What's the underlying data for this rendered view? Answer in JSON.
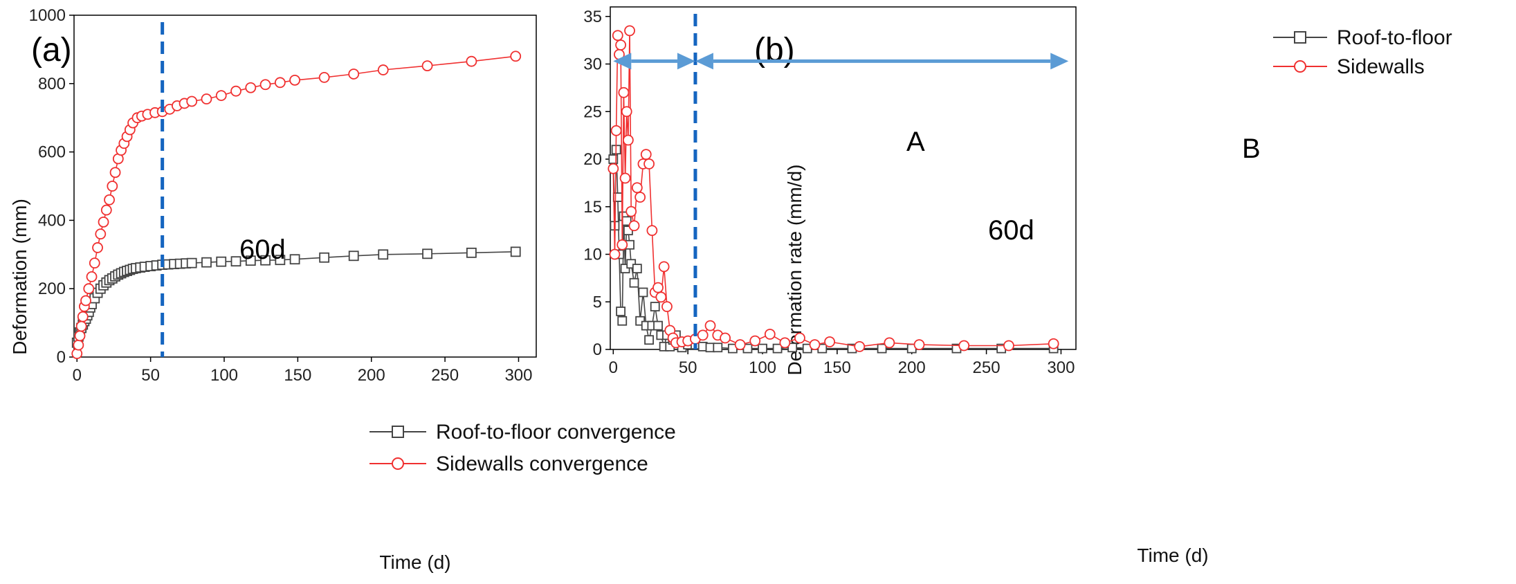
{
  "colors": {
    "roof": "#444444",
    "sidewall": "#f03030",
    "dashed": "#1565c0",
    "arrow": "#5b9bd5",
    "axis": "#000000"
  },
  "chart_data": [
    {
      "type": "line",
      "panel_label": "(a)",
      "xlabel": "Time (d)",
      "ylabel": "Deformation (mm)",
      "xlim": [
        -2,
        312
      ],
      "ylim": [
        0,
        1000
      ],
      "xticks": [
        0,
        50,
        100,
        150,
        200,
        250,
        300
      ],
      "yticks": [
        0,
        200,
        400,
        600,
        800,
        1000
      ],
      "grid": false,
      "legend_position": "bottom-right",
      "vline": {
        "x": 58,
        "label": "60d"
      },
      "series": [
        {
          "name": "Roof-to-floor convergence",
          "marker": "square",
          "x": [
            0,
            1,
            2,
            3,
            4,
            5,
            6,
            7,
            8,
            9,
            10,
            12,
            14,
            16,
            18,
            20,
            22,
            24,
            26,
            28,
            30,
            32,
            34,
            36,
            38,
            40,
            43,
            46,
            50,
            54,
            58,
            62,
            66,
            70,
            74,
            78,
            88,
            98,
            108,
            118,
            128,
            138,
            148,
            168,
            188,
            208,
            238,
            268,
            298
          ],
          "y": [
            42,
            60,
            72,
            85,
            95,
            105,
            112,
            122,
            132,
            145,
            155,
            172,
            188,
            200,
            210,
            218,
            225,
            230,
            236,
            241,
            245,
            249,
            252,
            255,
            258,
            260,
            262,
            264,
            266,
            268,
            270,
            271,
            272,
            273,
            274,
            275,
            277,
            279,
            280,
            282,
            283,
            284,
            286,
            291,
            296,
            300,
            302,
            305,
            308
          ]
        },
        {
          "name": "Sidewalls convergence",
          "marker": "circle",
          "x": [
            0,
            1,
            2,
            3,
            4,
            5,
            6,
            8,
            10,
            12,
            14,
            16,
            18,
            20,
            22,
            24,
            26,
            28,
            30,
            32,
            34,
            36,
            38,
            41,
            44,
            48,
            53,
            58,
            63,
            68,
            73,
            78,
            88,
            98,
            108,
            118,
            128,
            138,
            148,
            168,
            188,
            208,
            238,
            268,
            298
          ],
          "y": [
            10,
            35,
            62,
            90,
            118,
            148,
            165,
            200,
            235,
            275,
            320,
            360,
            395,
            430,
            460,
            500,
            540,
            580,
            605,
            625,
            645,
            665,
            685,
            700,
            705,
            710,
            715,
            718,
            725,
            735,
            742,
            748,
            755,
            765,
            778,
            788,
            797,
            803,
            810,
            818,
            828,
            840,
            852,
            865,
            880
          ]
        }
      ]
    },
    {
      "type": "line",
      "panel_label": "(b)",
      "xlabel": "Time (d)",
      "ylabel": "Deformation rate (mm/d)",
      "xlim": [
        -2,
        310
      ],
      "ylim": [
        0,
        36
      ],
      "xticks": [
        0,
        50,
        100,
        150,
        200,
        250,
        300
      ],
      "yticks": [
        0,
        5,
        10,
        15,
        20,
        25,
        30,
        35
      ],
      "grid": false,
      "legend_position": "top-right",
      "vline": {
        "x": 55,
        "label": "60d"
      },
      "stages": [
        {
          "label": "A",
          "from": 0,
          "to": 55,
          "y": 30.3
        },
        {
          "label": "B",
          "from": 55,
          "to": 305,
          "y": 30.3
        }
      ],
      "series": [
        {
          "name": "Roof-to-floor",
          "marker": "square",
          "x": [
            0,
            1,
            2,
            3,
            4,
            5,
            6,
            7,
            8,
            9,
            10,
            11,
            12,
            14,
            16,
            18,
            20,
            22,
            24,
            26,
            28,
            30,
            32,
            34,
            36,
            38,
            40,
            42,
            46,
            50,
            55,
            60,
            65,
            70,
            80,
            90,
            100,
            110,
            120,
            130,
            140,
            160,
            180,
            200,
            230,
            260,
            295
          ],
          "y": [
            20,
            13,
            21,
            16,
            10,
            4,
            3,
            14,
            8.5,
            13.5,
            12.5,
            11,
            9,
            7,
            8.5,
            3,
            6,
            2.5,
            1,
            2.5,
            4.5,
            2.5,
            1.5,
            0.3,
            1.5,
            0.3,
            1,
            1.5,
            0.2,
            0.5,
            0.5,
            0.3,
            0.2,
            0.2,
            0.1,
            0.1,
            0.1,
            0.1,
            0.2,
            0.1,
            0.1,
            0.1,
            0.1,
            0.1,
            0.1,
            0.1,
            0.1
          ]
        },
        {
          "name": "Sidewalls",
          "marker": "circle",
          "x": [
            0,
            1,
            2,
            3,
            4,
            5,
            6,
            7,
            8,
            9,
            10,
            11,
            12,
            14,
            16,
            18,
            20,
            22,
            24,
            26,
            28,
            30,
            32,
            34,
            36,
            38,
            40,
            42,
            46,
            50,
            55,
            60,
            65,
            70,
            75,
            85,
            95,
            105,
            115,
            125,
            135,
            145,
            165,
            185,
            205,
            235,
            265,
            295
          ],
          "y": [
            19,
            10,
            23,
            33,
            31,
            32,
            11,
            27,
            18,
            25,
            22,
            33.5,
            14.5,
            13,
            17,
            16,
            19.5,
            20.5,
            19.5,
            12.5,
            6,
            6.5,
            5.5,
            8.7,
            4.5,
            2,
            1.2,
            0.7,
            0.8,
            0.9,
            1.1,
            1.5,
            2.5,
            1.5,
            1.2,
            0.5,
            0.9,
            1.6,
            0.7,
            1.2,
            0.5,
            0.8,
            0.3,
            0.7,
            0.5,
            0.4,
            0.4,
            0.6
          ]
        }
      ]
    }
  ]
}
